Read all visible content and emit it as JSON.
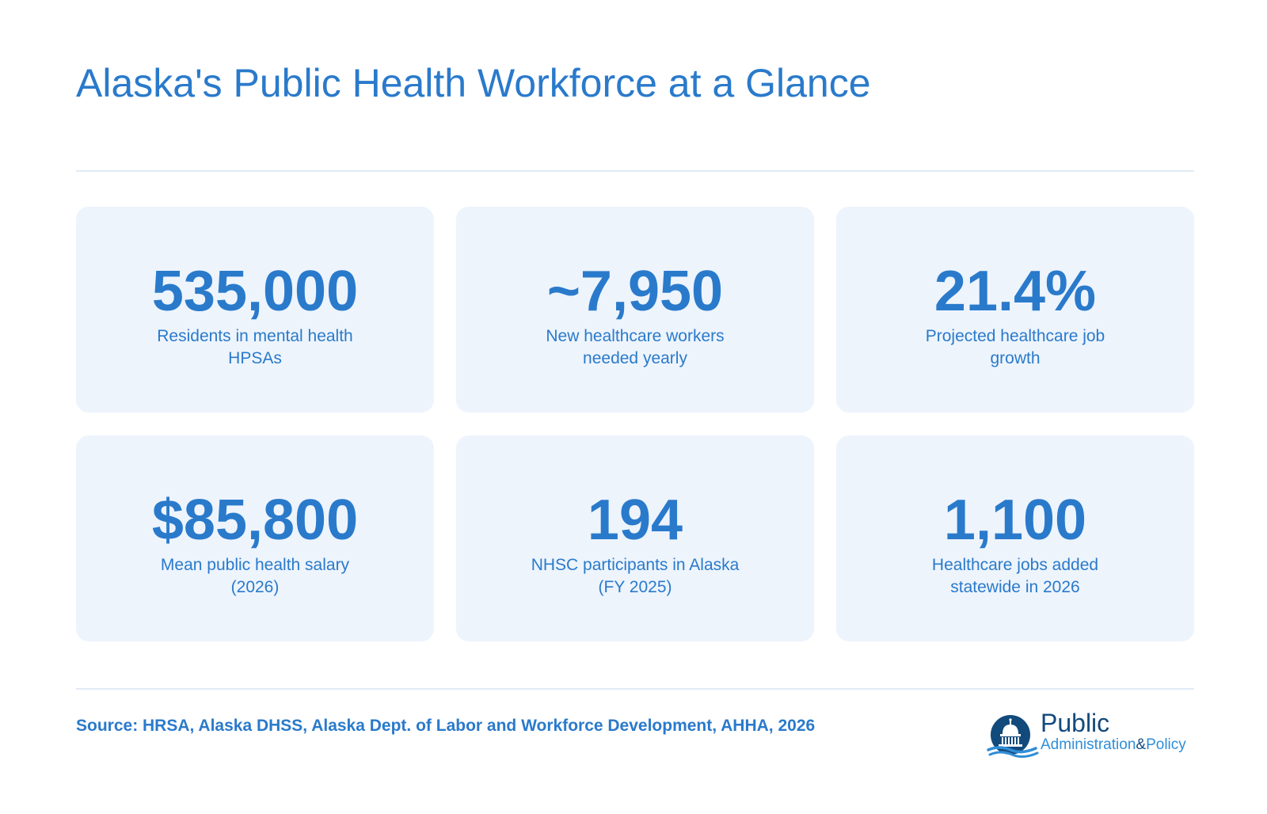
{
  "title": "Alaska's Public Health Workforce at a Glance",
  "stats": [
    {
      "value": "535,000",
      "label": "Residents in mental health HPSAs"
    },
    {
      "value": "~7,950",
      "label": "New healthcare workers needed yearly"
    },
    {
      "value": "21.4%",
      "label": "Projected healthcare job growth"
    },
    {
      "value": "$85,800",
      "label": "Mean public health salary (2026)"
    },
    {
      "value": "194",
      "label": "NHSC participants in Alaska (FY 2025)"
    },
    {
      "value": "1,100",
      "label": "Healthcare jobs added statewide in 2026"
    }
  ],
  "source": "Source: HRSA, Alaska DHSS, Alaska Dept. of Labor and Workforce Development, AHHA, 2026",
  "logo": {
    "word1": "Public",
    "word2": "Administration",
    "amp": "&",
    "word3": "Policy",
    "icon": "capitol-dome-icon"
  },
  "colors": {
    "accent": "#2a7acb",
    "card_background": "#edf4fc",
    "logo_navy": "#134a7c",
    "logo_light_blue": "#2f8ed8",
    "divider": "#e1ebf5"
  }
}
